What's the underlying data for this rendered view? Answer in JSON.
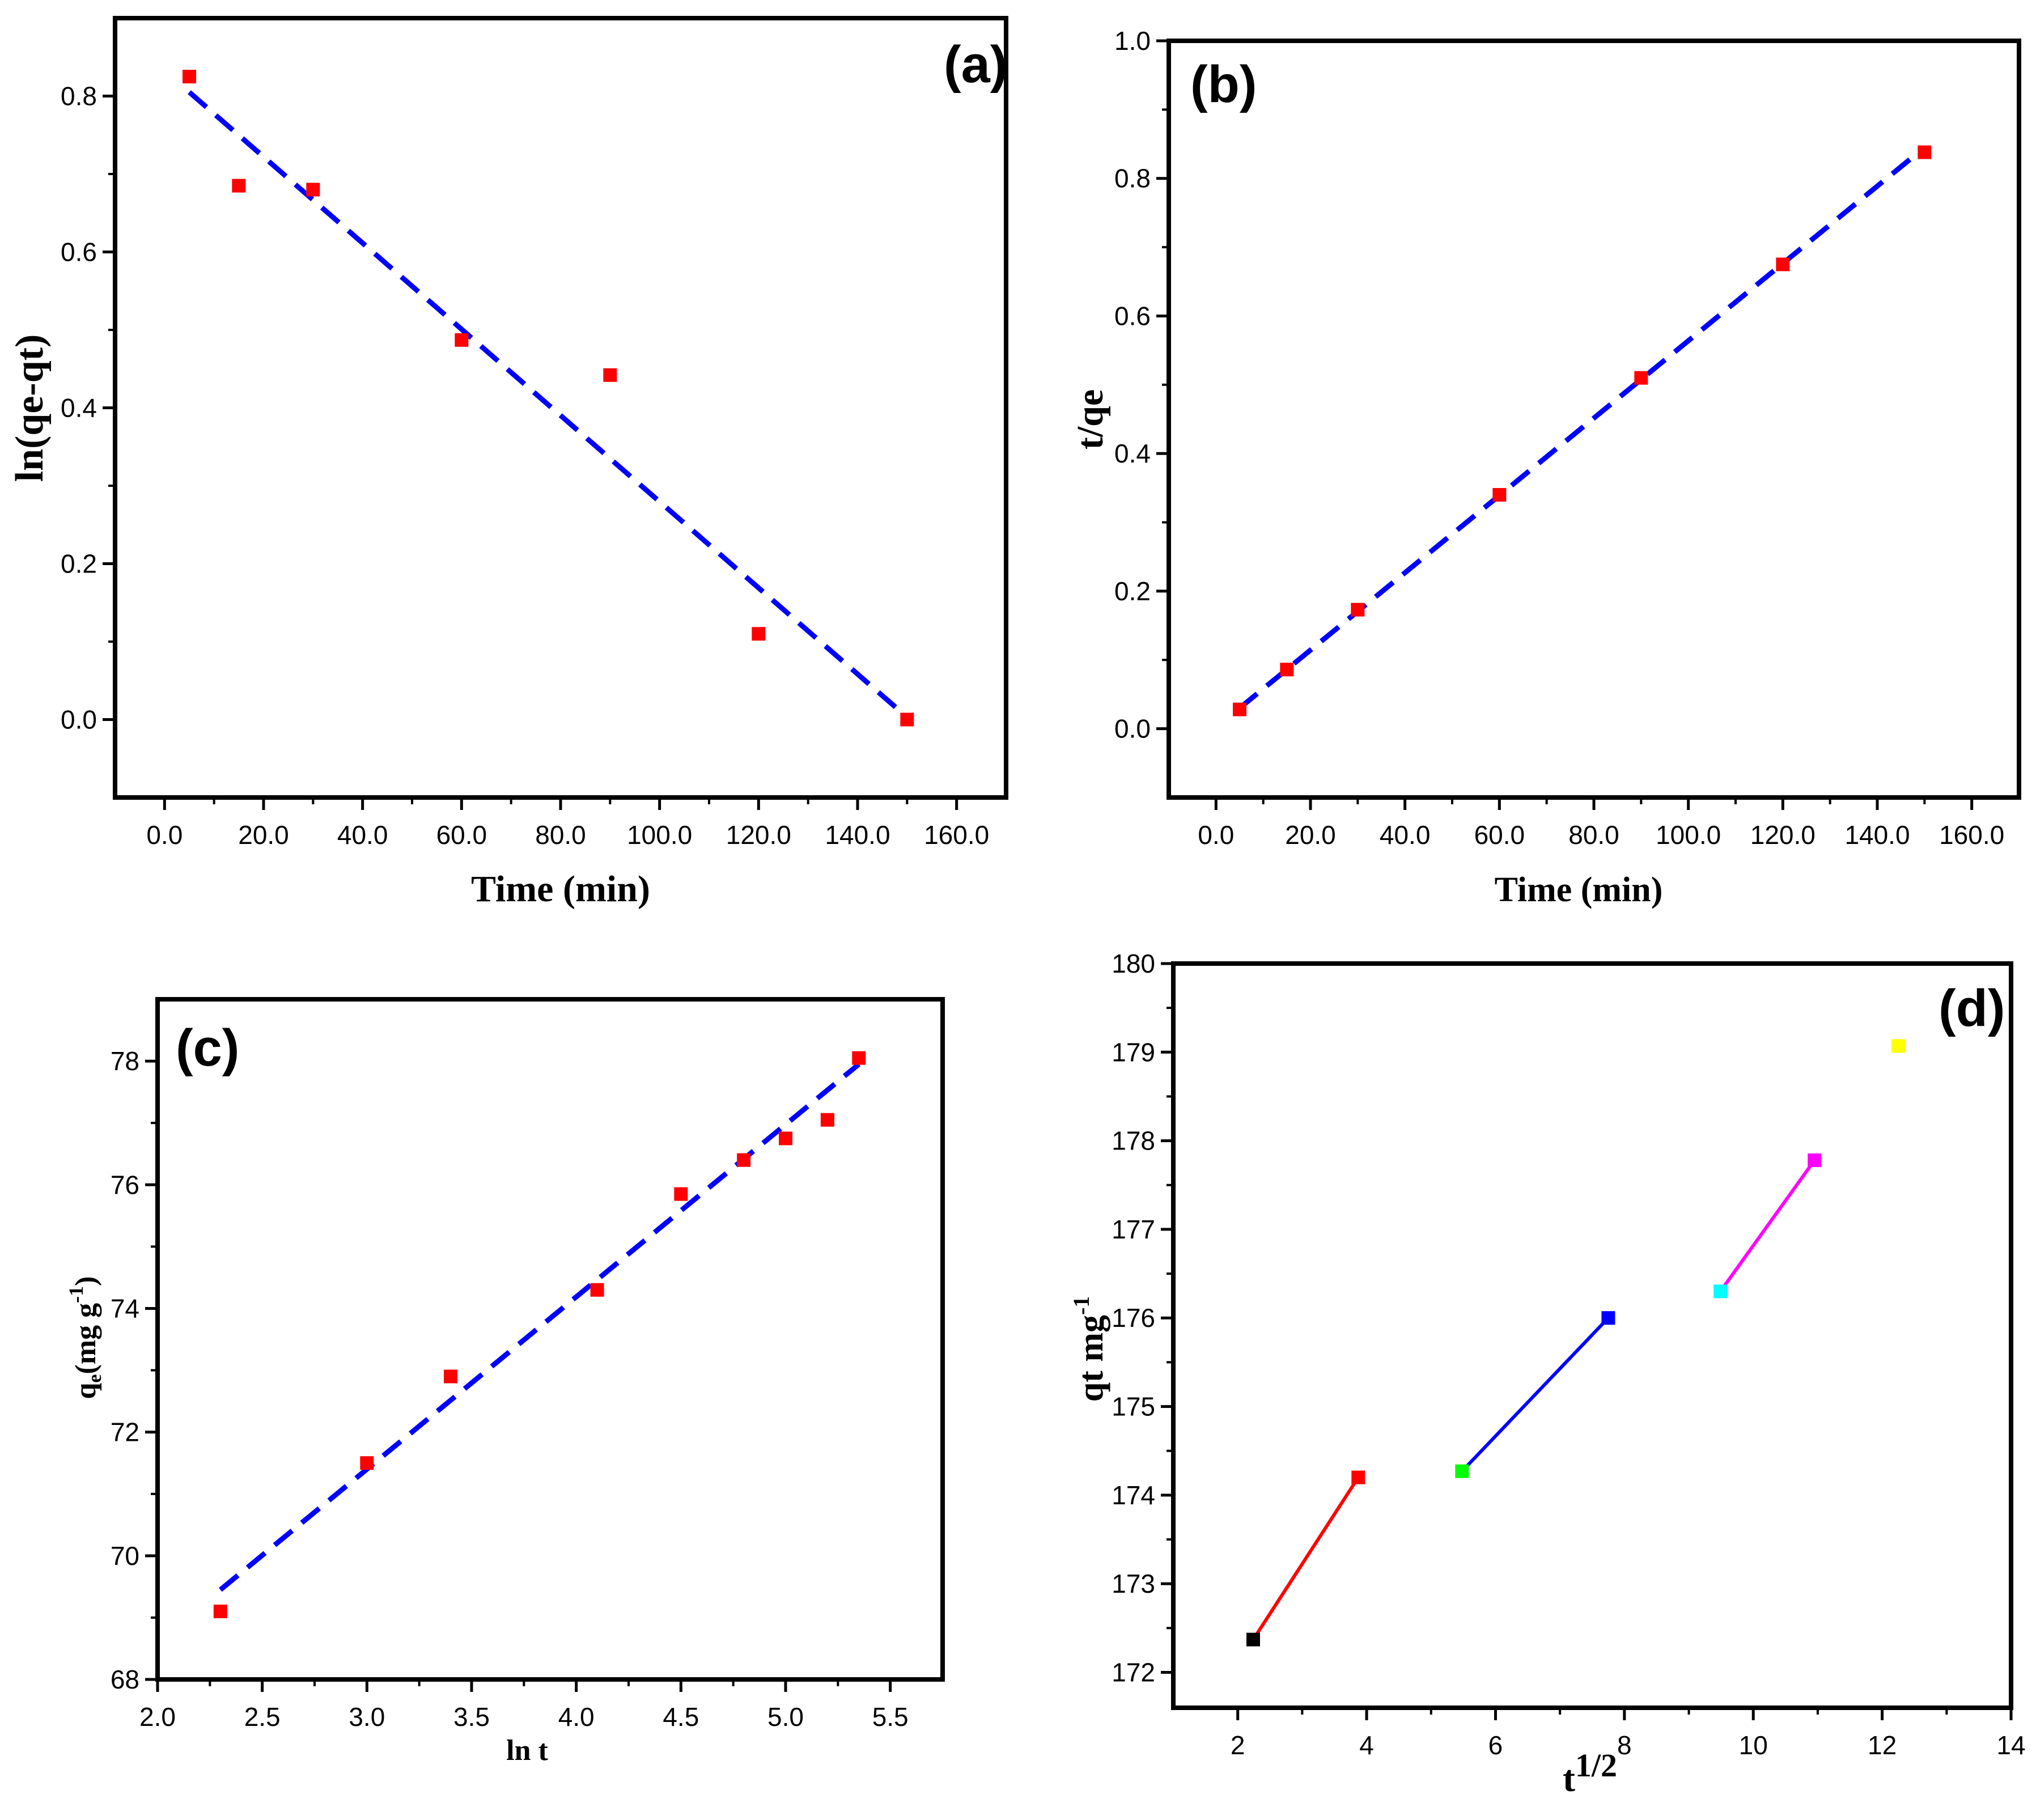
{
  "chart_data": [
    {
      "id": "a",
      "type": "scatter",
      "panel_label": "(a)",
      "xlabel": "Time (min)",
      "ylabel": "ln(qe-qt)",
      "xlim": [
        -10,
        170
      ],
      "ylim": [
        -0.1,
        0.9
      ],
      "xticks": [
        0,
        20,
        40,
        60,
        80,
        100,
        120,
        140,
        160
      ],
      "yticks": [
        0.0,
        0.2,
        0.4,
        0.6,
        0.8
      ],
      "tick_decimals": 1,
      "x": [
        5,
        15,
        30,
        60,
        90,
        120,
        150
      ],
      "y": [
        0.825,
        0.685,
        0.68,
        0.487,
        0.442,
        0.11,
        0.0
      ],
      "marker_color": "#ff0000",
      "fits": [
        {
          "x": [
            5,
            150
          ],
          "y": [
            0.805,
            0.003
          ],
          "style": "dashed",
          "color": "#0000ff"
        }
      ]
    },
    {
      "id": "b",
      "type": "scatter",
      "panel_label": "(b)",
      "xlabel": "Time (min)",
      "ylabel": "t/qe",
      "xlim": [
        -10,
        170
      ],
      "ylim": [
        -0.1,
        1.0
      ],
      "xticks": [
        0,
        20,
        40,
        60,
        80,
        100,
        120,
        140,
        160
      ],
      "yticks": [
        0.0,
        0.2,
        0.4,
        0.6,
        0.8,
        1.0
      ],
      "tick_decimals": 1,
      "x": [
        5,
        15,
        30,
        60,
        90,
        120,
        150
      ],
      "y": [
        0.028,
        0.086,
        0.173,
        0.34,
        0.51,
        0.675,
        0.838
      ],
      "marker_color": "#ff0000",
      "fits": [
        {
          "x": [
            5,
            150
          ],
          "y": [
            0.03,
            0.845
          ],
          "style": "dashed",
          "color": "#0000ff"
        }
      ]
    },
    {
      "id": "c",
      "type": "scatter",
      "panel_label": "(c)",
      "xlabel": "ln t",
      "ylabel": "qe(mg g-1)",
      "xlim": [
        2.0,
        5.75
      ],
      "ylim": [
        68,
        79
      ],
      "xticks": [
        2.0,
        2.5,
        3.0,
        3.5,
        4.0,
        4.5,
        5.0,
        5.5
      ],
      "yticks": [
        68,
        70,
        72,
        74,
        76,
        78
      ],
      "xtick_decimals": 1,
      "ytick_decimals": 0,
      "x": [
        2.3,
        3.0,
        3.4,
        4.1,
        4.5,
        4.8,
        5.0,
        5.2,
        5.35
      ],
      "y": [
        69.1,
        71.5,
        72.9,
        74.3,
        75.85,
        76.4,
        76.75,
        77.05,
        78.05
      ],
      "marker_color": "#ff0000",
      "fits": [
        {
          "x": [
            2.3,
            5.35
          ],
          "y": [
            69.45,
            77.95
          ],
          "style": "dashed",
          "color": "#0000ff"
        }
      ]
    },
    {
      "id": "d",
      "type": "scatter",
      "panel_label": "(d)",
      "xlabel": "t1/2",
      "ylabel": "qt mg-1",
      "xlim": [
        1,
        14
      ],
      "ylim": [
        171.6,
        180
      ],
      "xticks": [
        2,
        4,
        6,
        8,
        10,
        12,
        14
      ],
      "yticks": [
        172,
        173,
        174,
        175,
        176,
        177,
        178,
        179,
        180
      ],
      "tick_decimals": 0,
      "points": [
        {
          "x": 2.24,
          "y": 172.37,
          "color": "#000000"
        },
        {
          "x": 3.87,
          "y": 174.2,
          "color": "#ff0000"
        },
        {
          "x": 5.48,
          "y": 174.27,
          "color": "#00ff00"
        },
        {
          "x": 7.75,
          "y": 176.0,
          "color": "#0000ff"
        },
        {
          "x": 9.49,
          "y": 176.3,
          "color": "#00ffff"
        },
        {
          "x": 10.95,
          "y": 177.78,
          "color": "#ff00ff"
        },
        {
          "x": 12.25,
          "y": 179.07,
          "color": "#ffff00"
        }
      ],
      "fits": [
        {
          "x": [
            2.24,
            3.87
          ],
          "y": [
            172.37,
            174.2
          ],
          "style": "solid",
          "color": "#ff0000"
        },
        {
          "x": [
            5.48,
            7.75
          ],
          "y": [
            174.27,
            176.0
          ],
          "style": "solid",
          "color": "#0000ff"
        },
        {
          "x": [
            9.49,
            10.95
          ],
          "y": [
            176.3,
            177.78
          ],
          "style": "solid",
          "color": "#ff00ff"
        }
      ]
    }
  ]
}
